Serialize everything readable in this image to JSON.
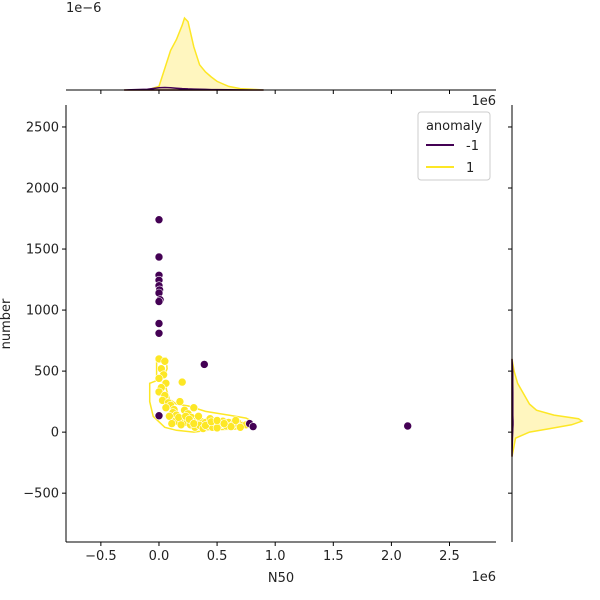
{
  "chart_data": {
    "type": "scatter",
    "xlabel": "N50",
    "ylabel": "number",
    "x_offset_label": "1e6",
    "y_offset_label": "1e6",
    "top_marginal_offset_label": "1e−6",
    "xlim": [
      -0.8,
      2.9
    ],
    "ylim": [
      -900,
      2680
    ],
    "x_ticks": [
      -0.5,
      0.0,
      0.5,
      1.0,
      1.5,
      2.0,
      2.5
    ],
    "x_tick_labels": [
      "−0.5",
      "0.0",
      "0.5",
      "1.0",
      "1.5",
      "2.0",
      "2.5"
    ],
    "y_ticks": [
      -500,
      0,
      500,
      1000,
      1500,
      2000,
      2500
    ],
    "y_tick_labels": [
      "−500",
      "0",
      "500",
      "1000",
      "1500",
      "2000",
      "2500"
    ],
    "grid": false,
    "legend": {
      "title": "anomaly",
      "placement": "top-right",
      "entries": [
        {
          "label": "-1",
          "color": "#440154"
        },
        {
          "label": "1",
          "color": "#fde725"
        }
      ]
    },
    "colors": {
      "anomaly_neg": "#440154",
      "anomaly_pos": "#fde725",
      "kde_fill": "#fff6bf"
    },
    "series": [
      {
        "name": "-1",
        "color": "#440154",
        "points": [
          [
            0.0,
            1740
          ],
          [
            0.0,
            1435
          ],
          [
            0.0,
            1285
          ],
          [
            0.0,
            1245
          ],
          [
            0.0,
            1200
          ],
          [
            0.005,
            1165
          ],
          [
            0.0,
            1140
          ],
          [
            0.01,
            1085
          ],
          [
            0.0,
            1070
          ],
          [
            0.0,
            890
          ],
          [
            0.0,
            810
          ],
          [
            0.39,
            555
          ],
          [
            0.0,
            135
          ],
          [
            0.78,
            70
          ],
          [
            0.81,
            45
          ],
          [
            2.14,
            50
          ]
        ]
      },
      {
        "name": "1",
        "color": "#fde725",
        "points": [
          [
            0.0,
            600
          ],
          [
            0.05,
            580
          ],
          [
            0.02,
            520
          ],
          [
            0.04,
            470
          ],
          [
            0.0,
            440
          ],
          [
            0.06,
            400
          ],
          [
            0.02,
            365
          ],
          [
            0.0,
            330
          ],
          [
            0.05,
            300
          ],
          [
            0.03,
            260
          ],
          [
            0.08,
            240
          ],
          [
            0.1,
            220
          ],
          [
            0.06,
            200
          ],
          [
            0.13,
            185
          ],
          [
            0.2,
            410
          ],
          [
            0.18,
            250
          ],
          [
            0.22,
            180
          ],
          [
            0.12,
            160
          ],
          [
            0.15,
            140
          ],
          [
            0.25,
            150
          ],
          [
            0.28,
            120
          ],
          [
            0.3,
            200
          ],
          [
            0.33,
            100
          ],
          [
            0.36,
            90
          ],
          [
            0.4,
            80
          ],
          [
            0.44,
            110
          ],
          [
            0.48,
            70
          ],
          [
            0.52,
            60
          ],
          [
            0.55,
            90
          ],
          [
            0.6,
            80
          ],
          [
            0.64,
            65
          ],
          [
            0.68,
            75
          ],
          [
            0.72,
            55
          ],
          [
            0.75,
            60
          ],
          [
            0.2,
            100
          ],
          [
            0.24,
            80
          ],
          [
            0.27,
            60
          ],
          [
            0.31,
            40
          ],
          [
            0.35,
            55
          ],
          [
            0.38,
            30
          ],
          [
            0.42,
            45
          ],
          [
            0.46,
            40
          ],
          [
            0.5,
            35
          ],
          [
            0.58,
            50
          ],
          [
            0.62,
            45
          ],
          [
            0.09,
            130
          ],
          [
            0.14,
            90
          ],
          [
            0.17,
            120
          ],
          [
            0.11,
            70
          ],
          [
            0.19,
            60
          ],
          [
            0.23,
            130
          ],
          [
            0.26,
            105
          ],
          [
            0.3,
            70
          ],
          [
            0.34,
            130
          ],
          [
            0.4,
            55
          ],
          [
            0.45,
            85
          ],
          [
            0.5,
            95
          ],
          [
            0.56,
            70
          ],
          [
            0.66,
            95
          ],
          [
            0.7,
            40
          ]
        ]
      }
    ],
    "kde_contour": [
      [
        -0.08,
        400
      ],
      [
        0.0,
        430
      ],
      [
        0.05,
        400
      ],
      [
        0.07,
        330
      ],
      [
        0.09,
        270
      ],
      [
        0.15,
        230
      ],
      [
        0.25,
        215
      ],
      [
        0.4,
        170
      ],
      [
        0.6,
        140
      ],
      [
        0.75,
        115
      ],
      [
        0.8,
        90
      ],
      [
        0.78,
        45
      ],
      [
        0.65,
        25
      ],
      [
        0.45,
        20
      ],
      [
        0.3,
        0
      ],
      [
        0.15,
        15
      ],
      [
        0.05,
        40
      ],
      [
        -0.05,
        130
      ],
      [
        -0.08,
        250
      ],
      [
        -0.08,
        400
      ]
    ],
    "kde_contour_upper": [
      [
        -0.02,
        600
      ],
      [
        0.06,
        610
      ],
      [
        0.07,
        520
      ],
      [
        0.05,
        470
      ],
      [
        -0.02,
        450
      ],
      [
        -0.02,
        600
      ]
    ],
    "marginal_x": {
      "x": [
        -0.3,
        -0.1,
        0.0,
        0.05,
        0.1,
        0.15,
        0.2,
        0.22,
        0.25,
        0.3,
        0.35,
        0.4,
        0.45,
        0.5,
        0.6,
        0.7,
        0.8,
        0.9
      ],
      "density_pos": [
        0.0,
        0.0,
        0.05,
        0.3,
        0.55,
        0.7,
        0.9,
        1.0,
        0.95,
        0.6,
        0.35,
        0.25,
        0.18,
        0.12,
        0.05,
        0.02,
        0.01,
        0.0
      ],
      "density_neg": [
        0.0,
        0.01,
        0.03,
        0.035,
        0.03,
        0.025,
        0.02,
        0.018,
        0.015,
        0.012,
        0.01,
        0.008,
        0.006,
        0.005,
        0.003,
        0.002,
        0.0,
        0.0
      ]
    },
    "marginal_y": {
      "y": [
        -200,
        -50,
        0,
        30,
        60,
        90,
        110,
        140,
        180,
        230,
        280,
        330,
        400,
        500,
        600
      ],
      "density_pos": [
        0.0,
        0.05,
        0.25,
        0.55,
        0.85,
        1.0,
        0.95,
        0.6,
        0.35,
        0.25,
        0.2,
        0.15,
        0.08,
        0.03,
        0.0
      ],
      "density_neg": [
        0.0,
        0.005,
        0.01,
        0.012,
        0.014,
        0.014,
        0.013,
        0.012,
        0.012,
        0.012,
        0.011,
        0.011,
        0.01,
        0.01,
        0.0
      ]
    }
  }
}
